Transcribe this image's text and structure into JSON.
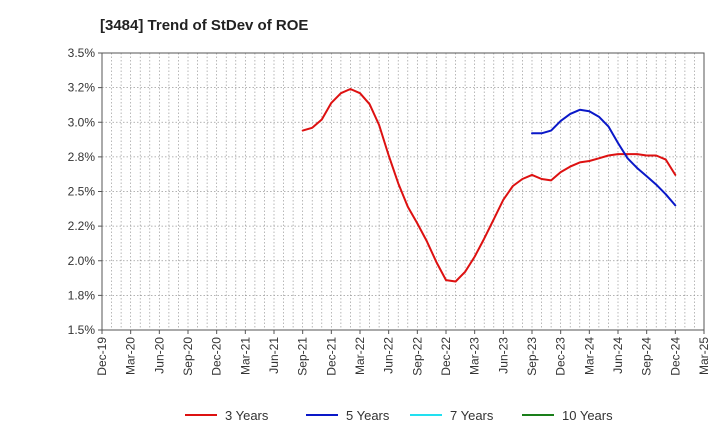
{
  "chart_data": {
    "type": "line",
    "title": "[3484]  Trend of StDev of ROE",
    "xlabel": "",
    "ylabel": "",
    "x_ticks": [
      "Dec-19",
      "Mar-20",
      "Jun-20",
      "Sep-20",
      "Dec-20",
      "Mar-21",
      "Jun-21",
      "Sep-21",
      "Dec-21",
      "Mar-22",
      "Jun-22",
      "Sep-22",
      "Dec-22",
      "Mar-23",
      "Jun-23",
      "Sep-23",
      "Dec-23",
      "Mar-24",
      "Jun-24",
      "Sep-24",
      "Dec-24",
      "Mar-25"
    ],
    "y_ticks": [
      "1.5%",
      "1.8%",
      "2.0%",
      "2.2%",
      "2.5%",
      "2.8%",
      "3.0%",
      "3.2%",
      "3.5%"
    ],
    "ylim": [
      1.5,
      3.5
    ],
    "grid": true,
    "legend_position": "bottom",
    "series": [
      {
        "name": "3 Years",
        "color": "#dd1111",
        "points": [
          [
            "Sep-21",
            2.94
          ],
          [
            "Oct-21",
            2.96
          ],
          [
            "Nov-21",
            3.02
          ],
          [
            "Dec-21",
            3.14
          ],
          [
            "Jan-22",
            3.21
          ],
          [
            "Feb-22",
            3.24
          ],
          [
            "Mar-22",
            3.21
          ],
          [
            "Apr-22",
            3.13
          ],
          [
            "May-22",
            2.98
          ],
          [
            "Jun-22",
            2.76
          ],
          [
            "Jul-22",
            2.56
          ],
          [
            "Aug-22",
            2.39
          ],
          [
            "Sep-22",
            2.27
          ],
          [
            "Oct-22",
            2.14
          ],
          [
            "Nov-22",
            1.99
          ],
          [
            "Dec-22",
            1.86
          ],
          [
            "Jan-23",
            1.85
          ],
          [
            "Feb-23",
            1.92
          ],
          [
            "Mar-23",
            2.03
          ],
          [
            "Apr-23",
            2.16
          ],
          [
            "May-23",
            2.3
          ],
          [
            "Jun-23",
            2.44
          ],
          [
            "Jul-23",
            2.54
          ],
          [
            "Aug-23",
            2.59
          ],
          [
            "Sep-23",
            2.62
          ],
          [
            "Oct-23",
            2.59
          ],
          [
            "Nov-23",
            2.58
          ],
          [
            "Dec-23",
            2.64
          ],
          [
            "Jan-24",
            2.68
          ],
          [
            "Feb-24",
            2.71
          ],
          [
            "Mar-24",
            2.72
          ],
          [
            "Apr-24",
            2.74
          ],
          [
            "May-24",
            2.76
          ],
          [
            "Jun-24",
            2.77
          ],
          [
            "Jul-24",
            2.77
          ],
          [
            "Aug-24",
            2.77
          ],
          [
            "Sep-24",
            2.76
          ],
          [
            "Oct-24",
            2.76
          ],
          [
            "Nov-24",
            2.73
          ],
          [
            "Dec-24",
            2.62
          ]
        ]
      },
      {
        "name": "5 Years",
        "color": "#0a18c8",
        "points": [
          [
            "Sep-23",
            2.92
          ],
          [
            "Oct-23",
            2.92
          ],
          [
            "Nov-23",
            2.94
          ],
          [
            "Dec-23",
            3.01
          ],
          [
            "Jan-24",
            3.06
          ],
          [
            "Feb-24",
            3.09
          ],
          [
            "Mar-24",
            3.08
          ],
          [
            "Apr-24",
            3.04
          ],
          [
            "May-24",
            2.97
          ],
          [
            "Jun-24",
            2.85
          ],
          [
            "Jul-24",
            2.74
          ],
          [
            "Aug-24",
            2.67
          ],
          [
            "Sep-24",
            2.61
          ],
          [
            "Oct-24",
            2.55
          ],
          [
            "Nov-24",
            2.48
          ],
          [
            "Dec-24",
            2.4
          ]
        ]
      },
      {
        "name": "7 Years",
        "color": "#22e0f0",
        "points": []
      },
      {
        "name": "10 Years",
        "color": "#1a7f1a",
        "points": []
      }
    ]
  }
}
